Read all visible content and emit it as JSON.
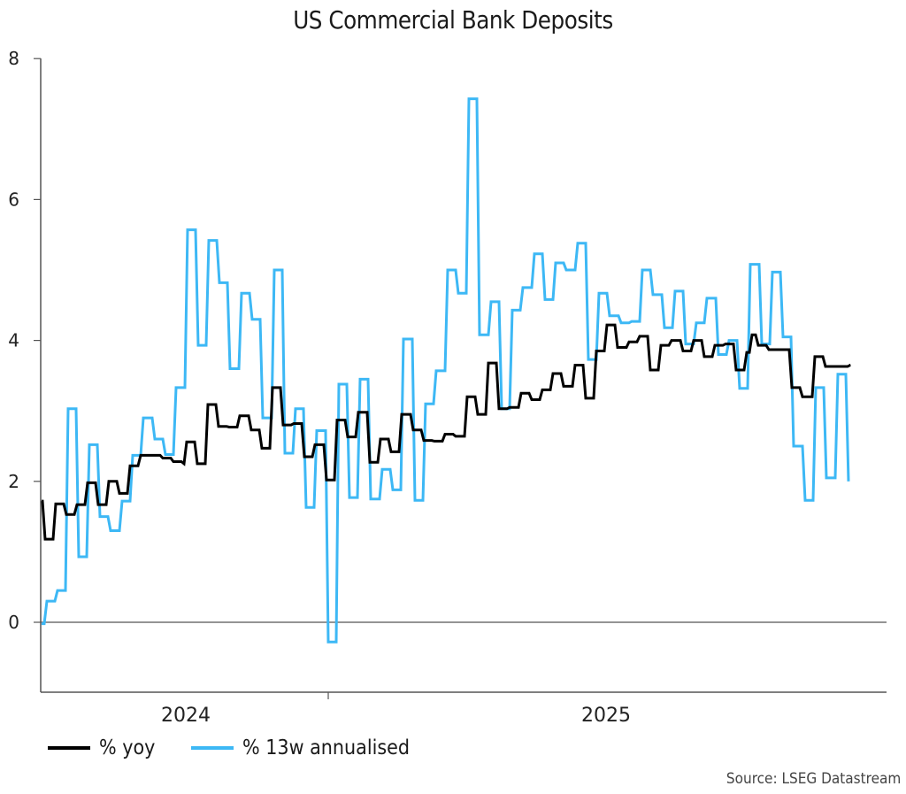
{
  "title": "US Commercial Bank Deposits",
  "source": "Source: LSEG Datastream",
  "colors": {
    "yoy": "#000000",
    "annualised": "#3db8f5",
    "axis": "#555555"
  },
  "legend": [
    {
      "label": "% yoy",
      "color": "#000000"
    },
    {
      "label": "% 13w annualised",
      "color": "#3db8f5"
    }
  ],
  "chart_data": {
    "type": "line",
    "title": "US Commercial Bank Deposits",
    "xlabel": "",
    "ylabel": "",
    "ylim": [
      -1,
      8
    ],
    "yticks": [
      0,
      2,
      4,
      6,
      8
    ],
    "xtick_labels": [
      "2024",
      "2025"
    ],
    "grid": false,
    "legend_position": "bottom-left",
    "step": true,
    "x_pixel_domain_note": "x values are approximate weekly step positions across the plot",
    "series": [
      {
        "name": "% 13w annualised",
        "color": "#3db8f5",
        "points": [
          [
            46,
            -0.02
          ],
          [
            52,
            0.3
          ],
          [
            64,
            0.45
          ],
          [
            76,
            3.03
          ],
          [
            88,
            0.93
          ],
          [
            100,
            2.52
          ],
          [
            112,
            1.5
          ],
          [
            124,
            1.3
          ],
          [
            137,
            1.72
          ],
          [
            149,
            2.37
          ],
          [
            161,
            2.9
          ],
          [
            174,
            2.6
          ],
          [
            186,
            2.38
          ],
          [
            198,
            3.33
          ],
          [
            211,
            5.57
          ],
          [
            223,
            3.93
          ],
          [
            235,
            5.42
          ],
          [
            247,
            4.82
          ],
          [
            259,
            3.6
          ],
          [
            272,
            4.67
          ],
          [
            284,
            4.3
          ],
          [
            296,
            2.9
          ],
          [
            309,
            5.0
          ],
          [
            321,
            2.4
          ],
          [
            333,
            3.03
          ],
          [
            345,
            1.63
          ],
          [
            357,
            2.72
          ],
          [
            370,
            -0.28
          ],
          [
            382,
            3.38
          ],
          [
            394,
            1.77
          ],
          [
            406,
            3.45
          ],
          [
            418,
            1.75
          ],
          [
            431,
            2.17
          ],
          [
            443,
            1.88
          ],
          [
            455,
            4.02
          ],
          [
            468,
            1.73
          ],
          [
            480,
            3.1
          ],
          [
            492,
            3.57
          ],
          [
            505,
            5.0
          ],
          [
            517,
            4.67
          ],
          [
            529,
            7.43
          ],
          [
            541,
            4.08
          ],
          [
            554,
            4.55
          ],
          [
            566,
            3.03
          ],
          [
            578,
            4.43
          ],
          [
            590,
            4.75
          ],
          [
            603,
            5.23
          ],
          [
            615,
            4.58
          ],
          [
            627,
            5.1
          ],
          [
            639,
            5.0
          ],
          [
            652,
            5.38
          ],
          [
            664,
            3.73
          ],
          [
            676,
            4.67
          ],
          [
            688,
            4.35
          ],
          [
            701,
            4.25
          ],
          [
            713,
            4.27
          ],
          [
            725,
            5.0
          ],
          [
            737,
            4.65
          ],
          [
            750,
            4.18
          ],
          [
            762,
            4.7
          ],
          [
            774,
            3.95
          ],
          [
            786,
            4.25
          ],
          [
            798,
            4.6
          ],
          [
            811,
            3.8
          ],
          [
            823,
            4.0
          ],
          [
            835,
            3.32
          ],
          [
            847,
            5.08
          ],
          [
            860,
            3.95
          ],
          [
            872,
            4.97
          ],
          [
            884,
            4.05
          ],
          [
            896,
            2.5
          ],
          [
            909,
            1.73
          ],
          [
            921,
            3.33
          ],
          [
            933,
            2.05
          ],
          [
            946,
            3.52
          ],
          [
            958,
            2.0
          ]
        ]
      },
      {
        "name": "% yoy",
        "color": "#000000",
        "points": [
          [
            46,
            1.72
          ],
          [
            50,
            1.18
          ],
          [
            62,
            1.68
          ],
          [
            74,
            1.53
          ],
          [
            86,
            1.67
          ],
          [
            98,
            1.98
          ],
          [
            110,
            1.67
          ],
          [
            122,
            2.0
          ],
          [
            134,
            1.83
          ],
          [
            146,
            2.22
          ],
          [
            158,
            2.37
          ],
          [
            170,
            2.37
          ],
          [
            183,
            2.33
          ],
          [
            195,
            2.28
          ],
          [
            207,
            2.25
          ],
          [
            210,
            2.56
          ],
          [
            222,
            2.25
          ],
          [
            234,
            3.09
          ],
          [
            246,
            2.78
          ],
          [
            258,
            2.77
          ],
          [
            270,
            2.93
          ],
          [
            283,
            2.73
          ],
          [
            295,
            2.47
          ],
          [
            307,
            3.33
          ],
          [
            319,
            2.8
          ],
          [
            331,
            2.82
          ],
          [
            343,
            2.35
          ],
          [
            355,
            2.52
          ],
          [
            368,
            2.02
          ],
          [
            380,
            2.87
          ],
          [
            392,
            2.63
          ],
          [
            404,
            2.98
          ],
          [
            417,
            2.27
          ],
          [
            429,
            2.6
          ],
          [
            441,
            2.42
          ],
          [
            453,
            2.95
          ],
          [
            466,
            2.73
          ],
          [
            478,
            2.58
          ],
          [
            490,
            2.57
          ],
          [
            502,
            2.67
          ],
          [
            514,
            2.64
          ],
          [
            527,
            3.2
          ],
          [
            539,
            2.95
          ],
          [
            551,
            3.68
          ],
          [
            563,
            3.03
          ],
          [
            575,
            3.05
          ],
          [
            588,
            3.25
          ],
          [
            600,
            3.16
          ],
          [
            612,
            3.3
          ],
          [
            624,
            3.53
          ],
          [
            636,
            3.35
          ],
          [
            649,
            3.65
          ],
          [
            661,
            3.18
          ],
          [
            673,
            3.85
          ],
          [
            685,
            4.22
          ],
          [
            697,
            3.9
          ],
          [
            710,
            3.98
          ],
          [
            722,
            4.06
          ],
          [
            734,
            3.58
          ],
          [
            746,
            3.93
          ],
          [
            758,
            4.0
          ],
          [
            771,
            3.85
          ],
          [
            783,
            4.0
          ],
          [
            795,
            3.77
          ],
          [
            807,
            3.93
          ],
          [
            819,
            3.95
          ],
          [
            831,
            3.58
          ],
          [
            843,
            3.83
          ],
          [
            849,
            4.08
          ],
          [
            856,
            3.93
          ],
          [
            868,
            3.87
          ],
          [
            880,
            3.87
          ],
          [
            894,
            3.33
          ],
          [
            906,
            3.2
          ],
          [
            920,
            3.77
          ],
          [
            932,
            3.63
          ],
          [
            960,
            3.65
          ]
        ]
      }
    ]
  }
}
